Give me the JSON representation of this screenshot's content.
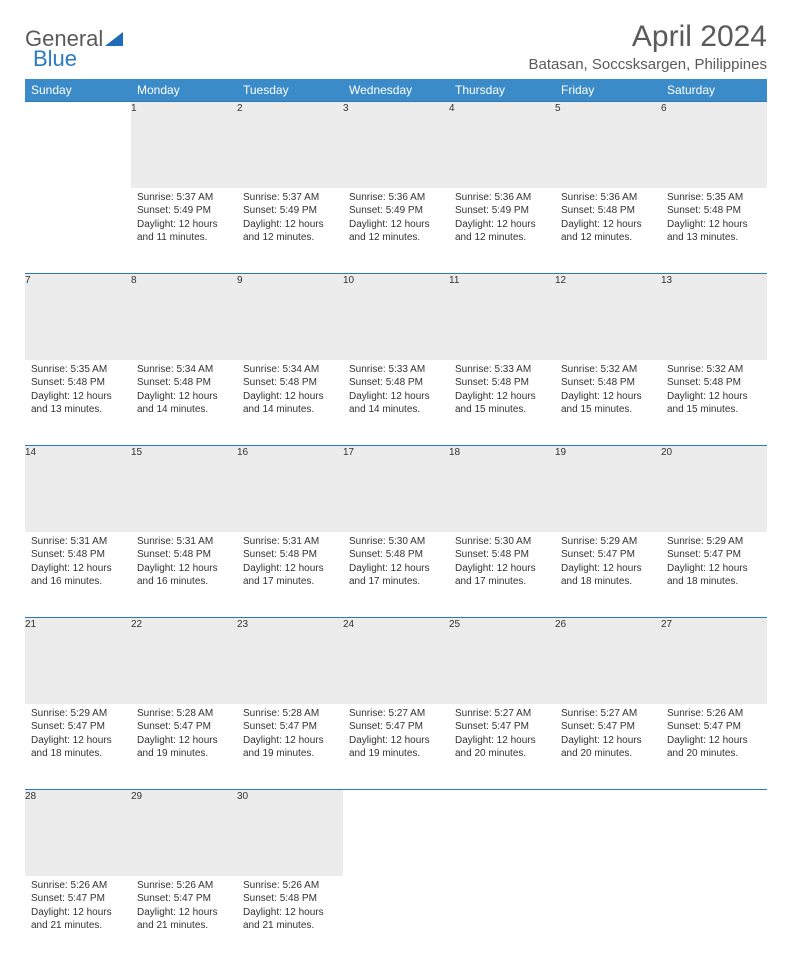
{
  "brand": {
    "part1": "General",
    "part2": "Blue"
  },
  "title": "April 2024",
  "location": "Batasan, Soccsksargen, Philippines",
  "colors": {
    "header_bg": "#3b8bc8",
    "header_text": "#ffffff",
    "daynum_bg": "#ececec",
    "border": "#2b7bbf",
    "text": "#333333",
    "muted": "#666666",
    "brand_gray": "#5a5a5a",
    "brand_blue": "#2b7bbf",
    "page_bg": "#ffffff"
  },
  "weekdays": [
    "Sunday",
    "Monday",
    "Tuesday",
    "Wednesday",
    "Thursday",
    "Friday",
    "Saturday"
  ],
  "weeks": [
    {
      "nums": [
        "",
        "1",
        "2",
        "3",
        "4",
        "5",
        "6"
      ],
      "cells": [
        null,
        {
          "sunrise": "Sunrise: 5:37 AM",
          "sunset": "Sunset: 5:49 PM",
          "day": "Daylight: 12 hours and 11 minutes."
        },
        {
          "sunrise": "Sunrise: 5:37 AM",
          "sunset": "Sunset: 5:49 PM",
          "day": "Daylight: 12 hours and 12 minutes."
        },
        {
          "sunrise": "Sunrise: 5:36 AM",
          "sunset": "Sunset: 5:49 PM",
          "day": "Daylight: 12 hours and 12 minutes."
        },
        {
          "sunrise": "Sunrise: 5:36 AM",
          "sunset": "Sunset: 5:49 PM",
          "day": "Daylight: 12 hours and 12 minutes."
        },
        {
          "sunrise": "Sunrise: 5:36 AM",
          "sunset": "Sunset: 5:48 PM",
          "day": "Daylight: 12 hours and 12 minutes."
        },
        {
          "sunrise": "Sunrise: 5:35 AM",
          "sunset": "Sunset: 5:48 PM",
          "day": "Daylight: 12 hours and 13 minutes."
        }
      ]
    },
    {
      "nums": [
        "7",
        "8",
        "9",
        "10",
        "11",
        "12",
        "13"
      ],
      "cells": [
        {
          "sunrise": "Sunrise: 5:35 AM",
          "sunset": "Sunset: 5:48 PM",
          "day": "Daylight: 12 hours and 13 minutes."
        },
        {
          "sunrise": "Sunrise: 5:34 AM",
          "sunset": "Sunset: 5:48 PM",
          "day": "Daylight: 12 hours and 14 minutes."
        },
        {
          "sunrise": "Sunrise: 5:34 AM",
          "sunset": "Sunset: 5:48 PM",
          "day": "Daylight: 12 hours and 14 minutes."
        },
        {
          "sunrise": "Sunrise: 5:33 AM",
          "sunset": "Sunset: 5:48 PM",
          "day": "Daylight: 12 hours and 14 minutes."
        },
        {
          "sunrise": "Sunrise: 5:33 AM",
          "sunset": "Sunset: 5:48 PM",
          "day": "Daylight: 12 hours and 15 minutes."
        },
        {
          "sunrise": "Sunrise: 5:32 AM",
          "sunset": "Sunset: 5:48 PM",
          "day": "Daylight: 12 hours and 15 minutes."
        },
        {
          "sunrise": "Sunrise: 5:32 AM",
          "sunset": "Sunset: 5:48 PM",
          "day": "Daylight: 12 hours and 15 minutes."
        }
      ]
    },
    {
      "nums": [
        "14",
        "15",
        "16",
        "17",
        "18",
        "19",
        "20"
      ],
      "cells": [
        {
          "sunrise": "Sunrise: 5:31 AM",
          "sunset": "Sunset: 5:48 PM",
          "day": "Daylight: 12 hours and 16 minutes."
        },
        {
          "sunrise": "Sunrise: 5:31 AM",
          "sunset": "Sunset: 5:48 PM",
          "day": "Daylight: 12 hours and 16 minutes."
        },
        {
          "sunrise": "Sunrise: 5:31 AM",
          "sunset": "Sunset: 5:48 PM",
          "day": "Daylight: 12 hours and 17 minutes."
        },
        {
          "sunrise": "Sunrise: 5:30 AM",
          "sunset": "Sunset: 5:48 PM",
          "day": "Daylight: 12 hours and 17 minutes."
        },
        {
          "sunrise": "Sunrise: 5:30 AM",
          "sunset": "Sunset: 5:48 PM",
          "day": "Daylight: 12 hours and 17 minutes."
        },
        {
          "sunrise": "Sunrise: 5:29 AM",
          "sunset": "Sunset: 5:47 PM",
          "day": "Daylight: 12 hours and 18 minutes."
        },
        {
          "sunrise": "Sunrise: 5:29 AM",
          "sunset": "Sunset: 5:47 PM",
          "day": "Daylight: 12 hours and 18 minutes."
        }
      ]
    },
    {
      "nums": [
        "21",
        "22",
        "23",
        "24",
        "25",
        "26",
        "27"
      ],
      "cells": [
        {
          "sunrise": "Sunrise: 5:29 AM",
          "sunset": "Sunset: 5:47 PM",
          "day": "Daylight: 12 hours and 18 minutes."
        },
        {
          "sunrise": "Sunrise: 5:28 AM",
          "sunset": "Sunset: 5:47 PM",
          "day": "Daylight: 12 hours and 19 minutes."
        },
        {
          "sunrise": "Sunrise: 5:28 AM",
          "sunset": "Sunset: 5:47 PM",
          "day": "Daylight: 12 hours and 19 minutes."
        },
        {
          "sunrise": "Sunrise: 5:27 AM",
          "sunset": "Sunset: 5:47 PM",
          "day": "Daylight: 12 hours and 19 minutes."
        },
        {
          "sunrise": "Sunrise: 5:27 AM",
          "sunset": "Sunset: 5:47 PM",
          "day": "Daylight: 12 hours and 20 minutes."
        },
        {
          "sunrise": "Sunrise: 5:27 AM",
          "sunset": "Sunset: 5:47 PM",
          "day": "Daylight: 12 hours and 20 minutes."
        },
        {
          "sunrise": "Sunrise: 5:26 AM",
          "sunset": "Sunset: 5:47 PM",
          "day": "Daylight: 12 hours and 20 minutes."
        }
      ]
    },
    {
      "nums": [
        "28",
        "29",
        "30",
        "",
        "",
        "",
        ""
      ],
      "cells": [
        {
          "sunrise": "Sunrise: 5:26 AM",
          "sunset": "Sunset: 5:47 PM",
          "day": "Daylight: 12 hours and 21 minutes."
        },
        {
          "sunrise": "Sunrise: 5:26 AM",
          "sunset": "Sunset: 5:47 PM",
          "day": "Daylight: 12 hours and 21 minutes."
        },
        {
          "sunrise": "Sunrise: 5:26 AM",
          "sunset": "Sunset: 5:48 PM",
          "day": "Daylight: 12 hours and 21 minutes."
        },
        null,
        null,
        null,
        null
      ]
    }
  ]
}
